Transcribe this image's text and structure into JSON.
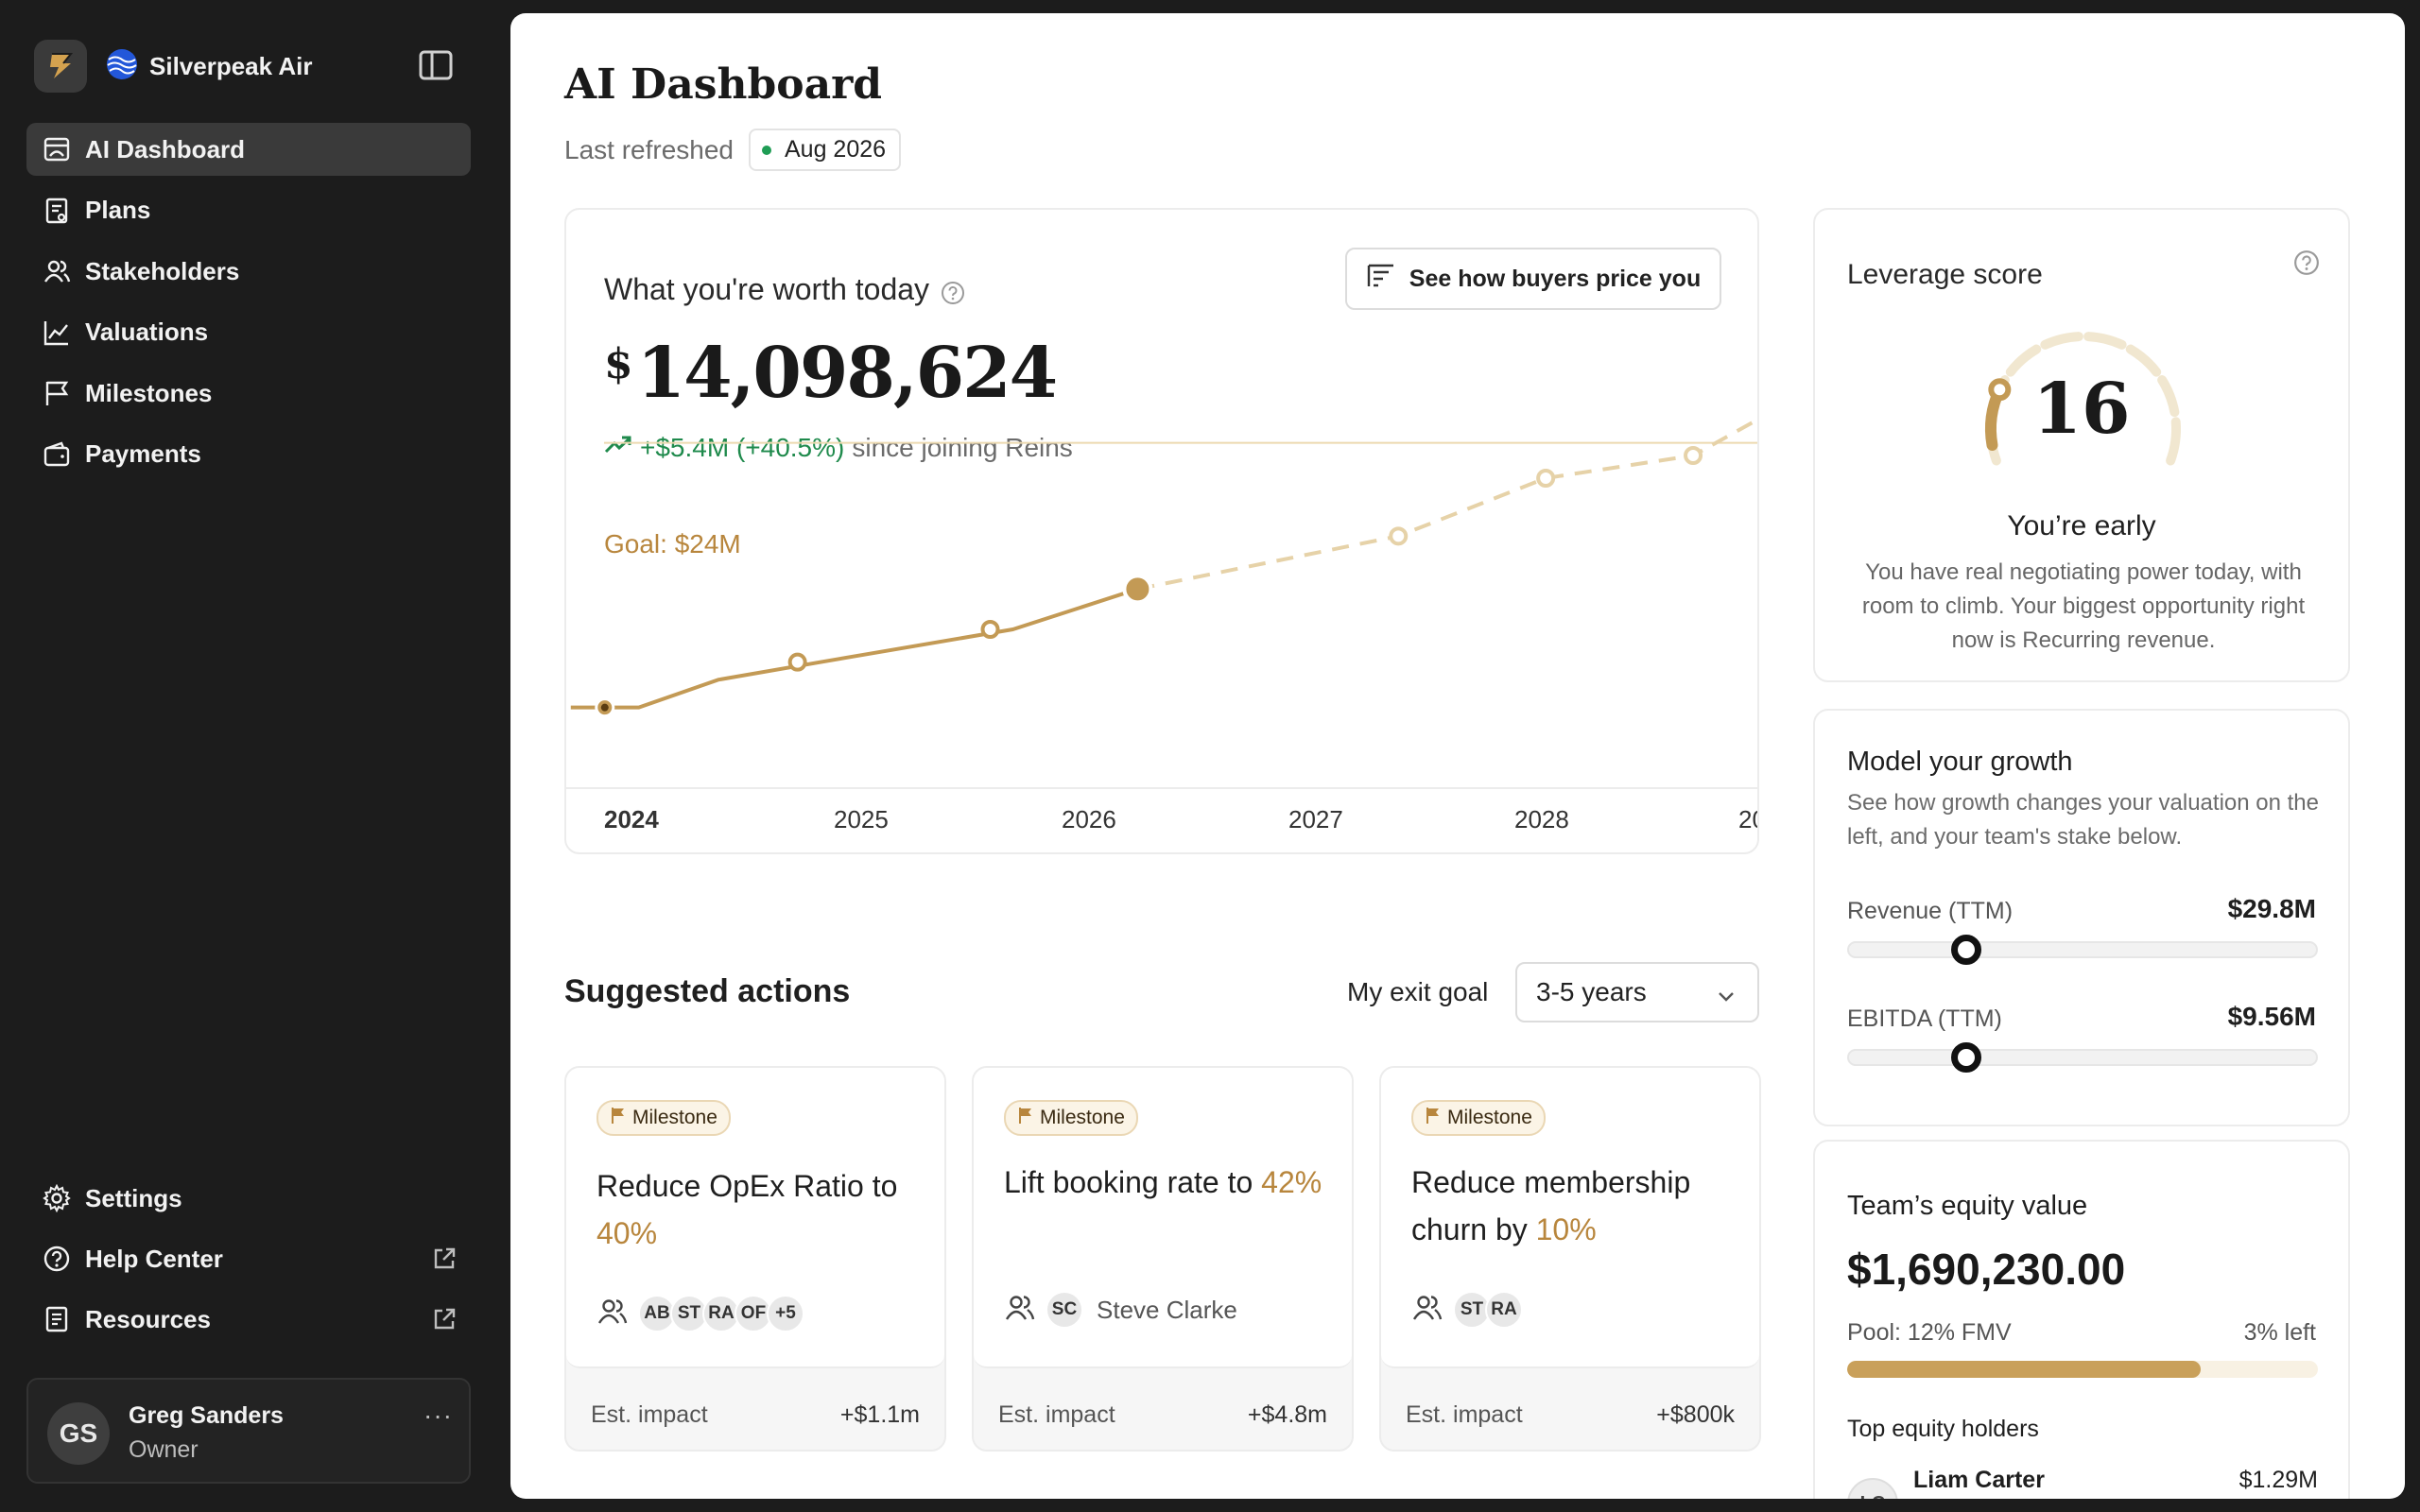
{
  "brand": {
    "name": "Silverpeak Air",
    "logo_icon": "bolt-logo-icon",
    "org_icon": "wave-globe-icon"
  },
  "sidebar": {
    "items": [
      {
        "label": "AI Dashboard",
        "icon": "dashboard-icon",
        "active": true
      },
      {
        "label": "Plans",
        "icon": "clipboard-icon"
      },
      {
        "label": "Stakeholders",
        "icon": "users-icon"
      },
      {
        "label": "Valuations",
        "icon": "line-chart-icon"
      },
      {
        "label": "Milestones",
        "icon": "flag-icon"
      },
      {
        "label": "Payments",
        "icon": "wallet-icon"
      }
    ],
    "bottom": [
      {
        "label": "Settings",
        "icon": "gear-icon"
      },
      {
        "label": "Help Center",
        "icon": "help-circle-icon",
        "external": true
      },
      {
        "label": "Resources",
        "icon": "document-icon",
        "external": true
      }
    ],
    "user": {
      "initials": "GS",
      "name": "Greg Sanders",
      "role": "Owner",
      "more": "···"
    }
  },
  "page": {
    "title": "AI Dashboard",
    "refreshed_label": "Last refreshed",
    "refreshed_value": "Aug 2026"
  },
  "worth": {
    "title": "What you're worth today",
    "button": "See how buyers price you",
    "currency": "$",
    "amount": "14,098,624",
    "change": "+$5.4M (+40.5%)",
    "since": "since joining Reins",
    "goal_label": "Goal: $24M"
  },
  "chart_data": {
    "type": "line",
    "x": [
      "2024",
      "2025",
      "2026",
      "2027",
      "2028",
      "20"
    ],
    "goal": 24,
    "series": [
      {
        "values": [
          [
            2023.85,
            13.5
          ],
          [
            2024.15,
            13.5
          ],
          [
            2024.5,
            14.6
          ],
          [
            2024.95,
            15.3
          ],
          [
            2025.8,
            16.6
          ],
          [
            2026.35,
            18.2
          ]
        ]
      },
      {
        "values": [
          [
            2026.35,
            18.2
          ],
          [
            2027.5,
            20.3
          ],
          [
            2028.15,
            22.6
          ],
          [
            2028.8,
            23.5
          ],
          [
            2029.1,
            25.0
          ]
        ]
      }
    ],
    "markers": [
      [
        2024.0,
        13.5
      ],
      [
        2024.85,
        15.3
      ],
      [
        2025.7,
        16.6
      ],
      [
        2026.35,
        18.2
      ],
      [
        2027.5,
        20.3
      ],
      [
        2028.15,
        22.6
      ],
      [
        2028.8,
        23.5
      ]
    ],
    "ylim": [
      10,
      28
    ],
    "xlim": [
      2023.83,
      2029.1
    ],
    "colors": {
      "actual": "#c39a55",
      "projected": "#e6d2a8",
      "goal_line": "#ecd9b0"
    }
  },
  "actions": {
    "title": "Suggested actions",
    "exit_label": "My exit goal",
    "exit_value": "3-5 years",
    "cards": [
      {
        "tag": "Milestone",
        "title_prefix": "Reduce OpEx Ratio to",
        "title_highlight": "40%",
        "people": [
          "AB",
          "ST",
          "RA",
          "OF",
          "+5"
        ],
        "assignee": "",
        "impact_label": "Est. impact",
        "impact": "+$1.1m"
      },
      {
        "tag": "Milestone",
        "title_prefix": "Lift booking rate to",
        "title_highlight": "42%",
        "people": [
          "SC"
        ],
        "assignee": "Steve Clarke",
        "impact_label": "Est. impact",
        "impact": "+$4.8m"
      },
      {
        "tag": "Milestone",
        "title_prefix": "Reduce membership churn by",
        "title_highlight": "10%",
        "people": [
          "ST",
          "RA"
        ],
        "assignee": "",
        "impact_label": "Est. impact",
        "impact": "+$800k"
      }
    ]
  },
  "leverage": {
    "title": "Leverage score",
    "score": "16",
    "score_max": 100,
    "status": "You’re early",
    "description": "You have real negotiating power today, with room to climb. Your biggest opportunity right now is Recurring revenue."
  },
  "growth": {
    "title": "Model your growth",
    "description": "See how growth changes your valuation on the left, and your team's stake below.",
    "sliders": [
      {
        "label": "Revenue (TTM)",
        "value": "$29.8M",
        "position": 0.25
      },
      {
        "label": "EBITDA (TTM)",
        "value": "$9.56M",
        "position": 0.25
      }
    ]
  },
  "equity": {
    "title": "Team’s equity value",
    "value": "$1,690,230.00",
    "pool": "Pool: 12% FMV",
    "left": "3% left",
    "used_fraction": 0.75,
    "holders_title": "Top equity holders",
    "holders": [
      {
        "initials": "LC",
        "name": "Liam Carter",
        "value": "$1.29M"
      }
    ]
  }
}
